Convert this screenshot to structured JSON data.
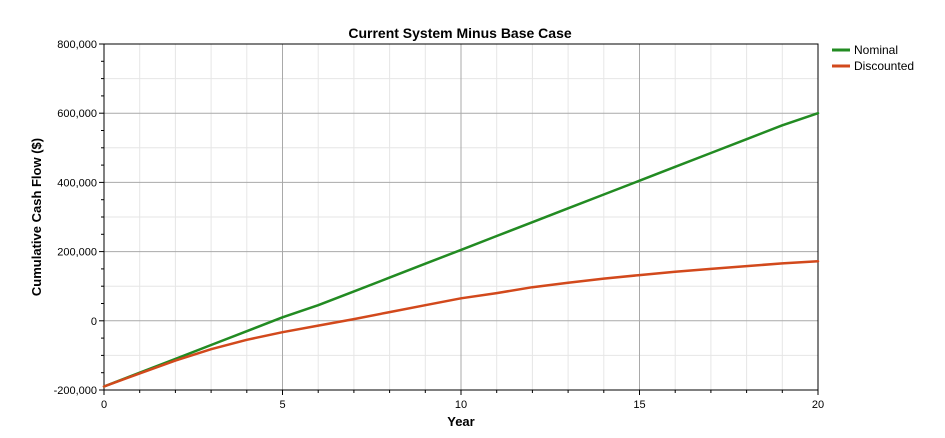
{
  "chart_data": {
    "type": "line",
    "title": "Current System Minus Base Case",
    "xlabel": "Year",
    "ylabel": "Cumulative Cash Flow ($)",
    "xlim": [
      0,
      20
    ],
    "ylim": [
      -200000,
      800000
    ],
    "x_ticks": [
      0,
      5,
      10,
      15,
      20
    ],
    "x_tick_labels": [
      "0",
      "5",
      "10",
      "15",
      "20"
    ],
    "y_ticks": [
      -200000,
      0,
      200000,
      400000,
      600000,
      800000
    ],
    "y_tick_labels": [
      "-200,000",
      "0",
      "200,000",
      "400,000",
      "600,000",
      "800,000"
    ],
    "grid": true,
    "legend_position": "right",
    "x": [
      0,
      1,
      2,
      3,
      4,
      5,
      6,
      7,
      8,
      9,
      10,
      11,
      12,
      13,
      14,
      15,
      16,
      17,
      18,
      19,
      20
    ],
    "series": [
      {
        "name": "Nominal",
        "color": "#228B22",
        "values": [
          -190000,
          -150000,
          -110000,
          -70000,
          -30000,
          10000,
          45000,
          85000,
          125000,
          165000,
          205000,
          245000,
          285000,
          325000,
          365000,
          405000,
          445000,
          485000,
          525000,
          565000,
          600000
        ]
      },
      {
        "name": "Discounted",
        "color": "#D2491C",
        "values": [
          -190000,
          -152000,
          -115000,
          -82000,
          -55000,
          -33000,
          -14000,
          5000,
          25000,
          45000,
          65000,
          80000,
          97000,
          110000,
          122000,
          132000,
          142000,
          150000,
          158000,
          166000,
          172000
        ]
      }
    ]
  }
}
